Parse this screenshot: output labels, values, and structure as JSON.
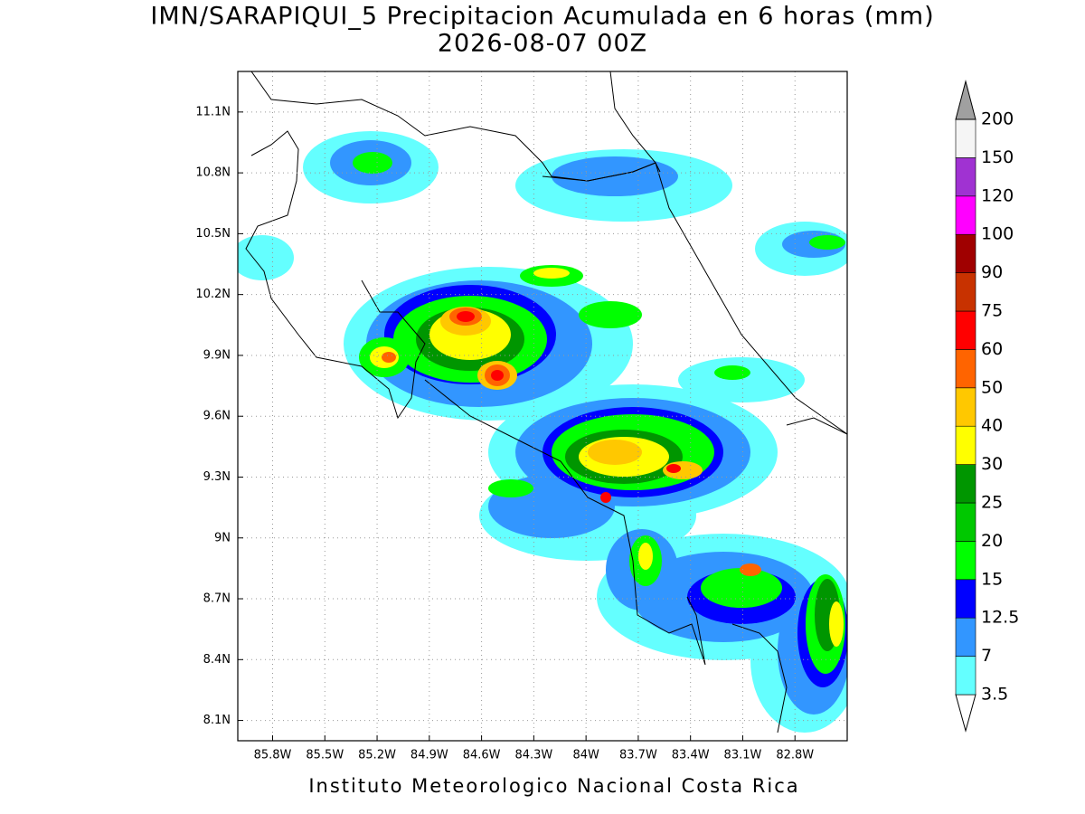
{
  "header": {
    "title": "IMN/SARAPIQUI_5 Precipitacion Acumulada en 6 horas (mm)",
    "subtitle": "2026-08-07 00Z"
  },
  "map": {
    "lon_range": [
      -86.0,
      -82.5
    ],
    "lat_range": [
      8.0,
      11.3
    ],
    "lon_ticks": [
      {
        "value": -85.8,
        "label": "85.8W"
      },
      {
        "value": -85.5,
        "label": "85.5W"
      },
      {
        "value": -85.2,
        "label": "85.2W"
      },
      {
        "value": -84.9,
        "label": "84.9W"
      },
      {
        "value": -84.6,
        "label": "84.6W"
      },
      {
        "value": -84.3,
        "label": "84.3W"
      },
      {
        "value": -84.0,
        "label": "84W"
      },
      {
        "value": -83.7,
        "label": "83.7W"
      },
      {
        "value": -83.4,
        "label": "83.4W"
      },
      {
        "value": -83.1,
        "label": "83.1W"
      },
      {
        "value": -82.8,
        "label": "82.8W"
      }
    ],
    "lat_ticks": [
      {
        "value": 11.1,
        "label": "11.1N"
      },
      {
        "value": 10.8,
        "label": "10.8N"
      },
      {
        "value": 10.5,
        "label": "10.5N"
      },
      {
        "value": 10.2,
        "label": "10.2N"
      },
      {
        "value": 9.9,
        "label": "9.9N"
      },
      {
        "value": 9.6,
        "label": "9.6N"
      },
      {
        "value": 9.3,
        "label": "9.3N"
      },
      {
        "value": 9.0,
        "label": "9N"
      },
      {
        "value": 8.7,
        "label": "8.7N"
      },
      {
        "value": 8.4,
        "label": "8.4N"
      },
      {
        "value": 8.1,
        "label": "8.1N"
      }
    ]
  },
  "colorbar": {
    "levels": [
      3.5,
      7,
      12.5,
      15,
      20,
      25,
      30,
      40,
      50,
      60,
      75,
      90,
      100,
      120,
      150,
      200
    ],
    "colors": [
      "#ffffff",
      "#64ffff",
      "#3296ff",
      "#0000ff",
      "#00ff00",
      "#00c800",
      "#009600",
      "#ffff00",
      "#ffc800",
      "#ff6400",
      "#ff0000",
      "#c83200",
      "#a00000",
      "#ff00ff",
      "#a032d2",
      "#f5f5f5",
      "#a0a0a0"
    ]
  },
  "footer": "Instituto Meteorologico Nacional Costa Rica"
}
